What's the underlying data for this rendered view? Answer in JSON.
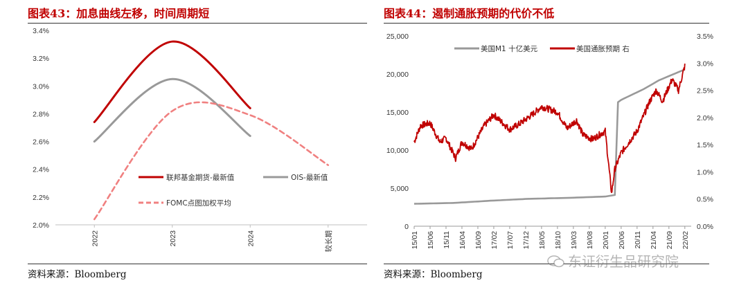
{
  "left": {
    "title": "图表43：加息曲线左移，时间周期短",
    "source": "资料来源：Bloomberg",
    "chart_data": {
      "type": "line",
      "categories": [
        "2022",
        "2023",
        "2024",
        "较长期"
      ],
      "ylim": [
        0.02,
        0.034
      ],
      "yticks": [
        "2.0%",
        "2.2%",
        "2.4%",
        "2.6%",
        "2.8%",
        "3.0%",
        "3.2%",
        "3.4%"
      ],
      "series": [
        {
          "name": "联邦基金期货-最新值",
          "style": "solid",
          "color": "#c00000",
          "values": [
            2.74,
            3.32,
            2.84,
            null
          ]
        },
        {
          "name": "OIS-最新值",
          "style": "solid",
          "color": "#999999",
          "values": [
            2.6,
            3.05,
            2.64,
            null
          ]
        },
        {
          "name": "FOMC点图加权平均",
          "style": "dashed",
          "color": "#f08080",
          "values": [
            2.04,
            2.82,
            2.79,
            2.43
          ]
        }
      ],
      "legend": "center-right"
    }
  },
  "right": {
    "title": "图表44：遏制通胀预期的代价不低",
    "source": "资料来源：Bloomberg",
    "watermark": "东证衍生品研究院",
    "chart_data": {
      "type": "line",
      "x_labels": [
        "15/01",
        "15/06",
        "15/11",
        "16/04",
        "16/09",
        "17/02",
        "17/07",
        "17/12",
        "18/05",
        "18/10",
        "19/03",
        "19/08",
        "20/01",
        "20/06",
        "20/11",
        "21/04",
        "21/09",
        "22/02"
      ],
      "y_left": {
        "range": [
          0,
          25000
        ],
        "ticks": [
          "0",
          "5,000",
          "10,000",
          "15,000",
          "20,000",
          "25,000"
        ]
      },
      "y_right": {
        "range": [
          0,
          3.5
        ],
        "ticks": [
          "0.0%",
          "0.5%",
          "1.0%",
          "1.5%",
          "2.0%",
          "2.5%",
          "3.0%",
          "3.5%"
        ]
      },
      "series": [
        {
          "name": "美国M1 十亿美元",
          "axis": "left",
          "color": "#999999",
          "points": [
            [
              "15/01",
              2950
            ],
            [
              "16/01",
              3050
            ],
            [
              "17/01",
              3350
            ],
            [
              "18/01",
              3600
            ],
            [
              "19/01",
              3720
            ],
            [
              "20/01",
              3900
            ],
            [
              "20/04",
              4100
            ],
            [
              "20/05",
              16300
            ],
            [
              "20/06",
              16600
            ],
            [
              "21/01",
              18000
            ],
            [
              "21/06",
              19200
            ],
            [
              "22/02",
              20600
            ]
          ]
        },
        {
          "name": "美国通胀预期 右",
          "axis": "right",
          "color": "#c00000",
          "points": [
            [
              "15/01",
              1.55
            ],
            [
              "15/03",
              1.85
            ],
            [
              "15/06",
              1.9
            ],
            [
              "15/09",
              1.55
            ],
            [
              "15/11",
              1.62
            ],
            [
              "16/02",
              1.25
            ],
            [
              "16/04",
              1.55
            ],
            [
              "16/07",
              1.42
            ],
            [
              "16/11",
              1.85
            ],
            [
              "17/02",
              2.05
            ],
            [
              "17/07",
              1.78
            ],
            [
              "17/10",
              1.88
            ],
            [
              "18/02",
              2.05
            ],
            [
              "18/05",
              2.2
            ],
            [
              "18/10",
              2.1
            ],
            [
              "19/01",
              1.8
            ],
            [
              "19/04",
              1.95
            ],
            [
              "19/06",
              1.68
            ],
            [
              "19/09",
              1.6
            ],
            [
              "20/01",
              1.75
            ],
            [
              "20/03",
              0.6
            ],
            [
              "20/04",
              1.05
            ],
            [
              "20/06",
              1.35
            ],
            [
              "20/11",
              1.75
            ],
            [
              "21/03",
              2.3
            ],
            [
              "21/05",
              2.5
            ],
            [
              "21/07",
              2.3
            ],
            [
              "21/10",
              2.7
            ],
            [
              "21/12",
              2.5
            ],
            [
              "22/02",
              2.95
            ]
          ]
        }
      ],
      "legend": "top"
    }
  }
}
